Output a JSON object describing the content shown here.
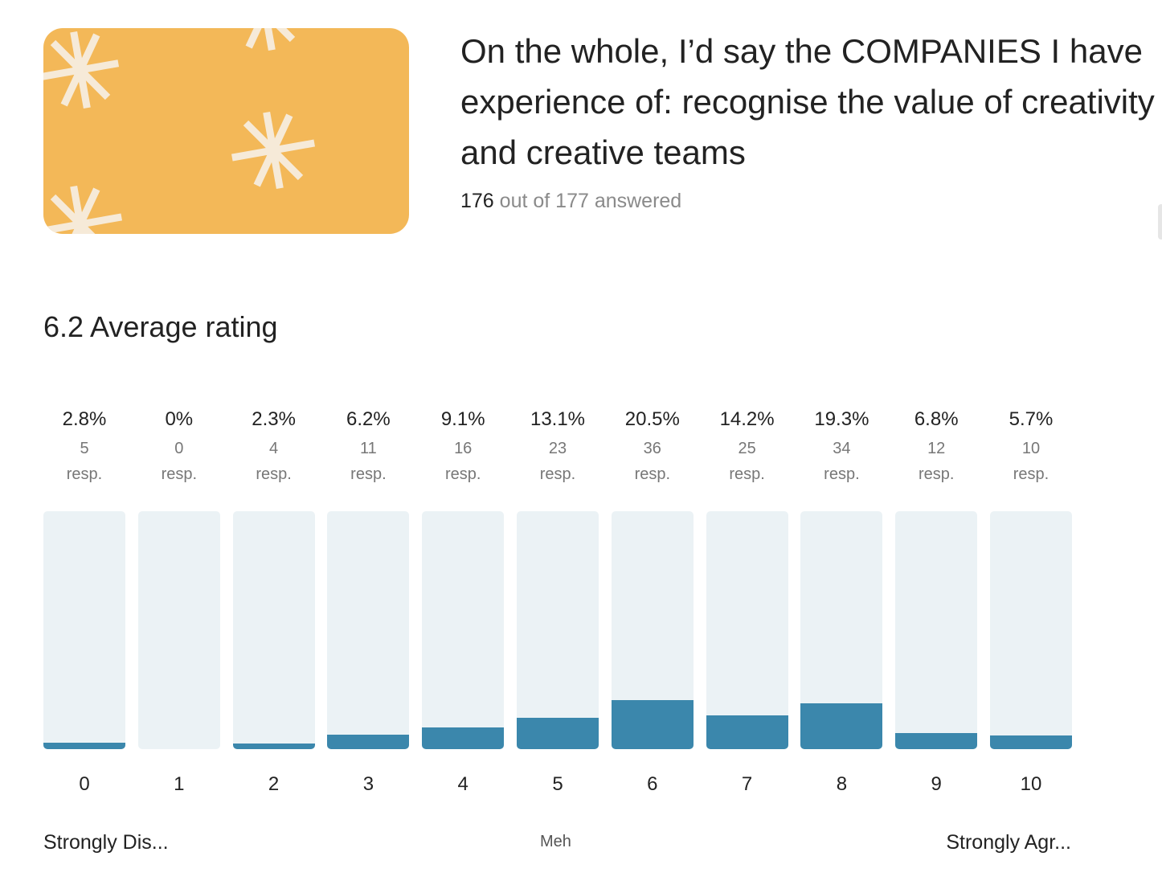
{
  "question": {
    "title": "On the whole, I’d say the COMPANIES I have experience of: recognise the value of creativity and creative teams",
    "answered_count": "176",
    "answered_rest": " out of 177 answered"
  },
  "banner": {
    "color": "#f3b858",
    "pattern": "asterisk-sparkles"
  },
  "average": "6.2 Average rating",
  "chart_data": {
    "type": "bar",
    "categories": [
      "0",
      "1",
      "2",
      "3",
      "4",
      "5",
      "6",
      "7",
      "8",
      "9",
      "10"
    ],
    "values": [
      2.8,
      0,
      2.3,
      6.2,
      9.1,
      13.1,
      20.5,
      14.2,
      19.3,
      6.8,
      5.7
    ],
    "percent_labels": [
      "2.8%",
      "0%",
      "2.3%",
      "6.2%",
      "9.1%",
      "13.1%",
      "20.5%",
      "14.2%",
      "19.3%",
      "6.8%",
      "5.7%"
    ],
    "responses": [
      5,
      0,
      4,
      11,
      16,
      23,
      36,
      25,
      34,
      12,
      10
    ],
    "response_unit": "resp.",
    "ylim": [
      0,
      100
    ],
    "bar_color": "#3b87ac",
    "track_color": "#ebf2f5",
    "anchors": {
      "left": "Strongly Dis...",
      "middle": "Meh",
      "right": "Strongly Agr..."
    }
  }
}
